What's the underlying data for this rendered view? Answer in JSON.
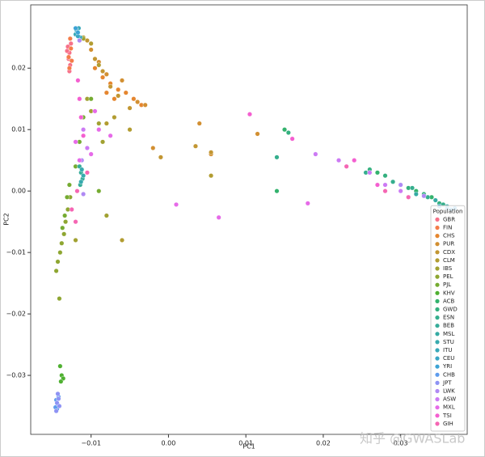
{
  "chart_data": {
    "type": "scatter",
    "x_label": "PC1",
    "y_label": "PC2",
    "xlim": [
      -0.0178,
      0.0386
    ],
    "ylim": [
      -0.0396,
      0.0303
    ],
    "xticks": [
      {
        "value": -0.01,
        "label": "−0.01"
      },
      {
        "value": 0,
        "label": "0.00"
      },
      0.01,
      0.02,
      0.03
    ],
    "yticks": [
      {
        "value": -0.03,
        "label": "−0.03"
      },
      {
        "value": -0.02,
        "label": "−0.02"
      },
      {
        "value": -0.01,
        "label": "−0.01"
      },
      {
        "value": 0,
        "label": "0.00"
      },
      0.01,
      0.02
    ],
    "grid": false,
    "legend_title": "Population",
    "legend_position": "lower right",
    "watermark": "知乎 @GWASLab",
    "series": [
      {
        "name": "GBR",
        "color": "#f77189",
        "x": [
          -0.013,
          -0.0128,
          -0.0129,
          -0.0127,
          -0.0131,
          -0.0126,
          -0.0128
        ],
        "y": [
          0.0235,
          0.0225,
          0.0215,
          0.0205,
          0.0228,
          0.024,
          0.0195
        ]
      },
      {
        "name": "FIN",
        "color": "#f47c49",
        "x": [
          -0.0127,
          -0.0129,
          -0.0126,
          -0.0128,
          -0.0125
        ],
        "y": [
          0.0248,
          0.0218,
          0.0232,
          0.02,
          0.0212
        ]
      },
      {
        "name": "CHS",
        "color": "#e5862f",
        "x": [
          -0.0095,
          -0.0085,
          -0.0075,
          -0.0065,
          -0.0055,
          -0.0045,
          -0.0035,
          -0.007,
          -0.008
        ],
        "y": [
          0.02,
          0.0185,
          0.0175,
          0.0165,
          0.016,
          0.015,
          0.014,
          0.015,
          0.016
        ]
      },
      {
        "name": "PUR",
        "color": "#d28f31",
        "x": [
          -0.01,
          -0.009,
          -0.008,
          -0.006,
          -0.004,
          -0.003,
          0.004,
          0.0115,
          0.0055,
          -0.002
        ],
        "y": [
          0.023,
          0.021,
          0.019,
          0.018,
          0.0145,
          0.014,
          0.011,
          0.0093,
          0.006,
          0.007
        ]
      },
      {
        "name": "CDX",
        "color": "#c29632",
        "x": [
          -0.0105,
          -0.0095,
          -0.0085,
          -0.0075,
          -0.0065,
          -0.005,
          0.0035,
          0.0055,
          -0.001
        ],
        "y": [
          0.0245,
          0.0215,
          0.0195,
          0.017,
          0.0155,
          0.0135,
          0.0073,
          0.0063,
          0.0055
        ]
      },
      {
        "name": "CLM",
        "color": "#b29c31",
        "x": [
          -0.011,
          -0.01,
          -0.009,
          -0.007,
          -0.005,
          -0.008,
          -0.006,
          0.0055
        ],
        "y": [
          0.025,
          0.024,
          0.0205,
          0.012,
          0.01,
          0.011,
          -0.008,
          0.0025
        ]
      },
      {
        "name": "IBS",
        "color": "#a1a131",
        "x": [
          -0.011,
          -0.0105,
          -0.01,
          -0.009,
          -0.0085,
          -0.008,
          -0.012
        ],
        "y": [
          0.0248,
          0.015,
          0.013,
          0.011,
          0.008,
          -0.004,
          -0.008
        ]
      },
      {
        "name": "PEL",
        "color": "#8ea631",
        "x": [
          -0.0145,
          -0.0143,
          -0.014,
          -0.0138,
          -0.0135,
          -0.0133,
          -0.013,
          -0.0127,
          -0.0141
        ],
        "y": [
          -0.013,
          -0.0115,
          -0.01,
          -0.0085,
          -0.007,
          -0.005,
          -0.003,
          -0.001,
          -0.0175
        ]
      },
      {
        "name": "PJL",
        "color": "#75ab31",
        "x": [
          -0.0137,
          -0.0134,
          -0.0131,
          -0.0128,
          -0.012,
          -0.0115,
          -0.011,
          -0.009,
          -0.01
        ],
        "y": [
          -0.006,
          -0.004,
          -0.001,
          0.001,
          0.004,
          0.008,
          0.012,
          0,
          0.015
        ]
      },
      {
        "name": "KHV",
        "color": "#4fb031",
        "x": [
          -0.014,
          -0.0138,
          -0.0136,
          -0.0139
        ],
        "y": [
          -0.0285,
          -0.03,
          -0.0305,
          -0.031
        ]
      },
      {
        "name": "ACB",
        "color": "#33b26d",
        "x": [
          0.014,
          0.015,
          0.027,
          0.03,
          0.032,
          0.034
        ],
        "y": [
          0,
          0.01,
          0.003,
          0.001,
          0,
          -0.001
        ]
      },
      {
        "name": "GWD",
        "color": "#34b07f",
        "x": [
          0.0155,
          0.026,
          0.028,
          0.031,
          0.033,
          0.035
        ],
        "y": [
          0.0095,
          0.0035,
          0.0025,
          0.0005,
          -0.0005,
          -0.002
        ]
      },
      {
        "name": "ESN",
        "color": "#35ae8d",
        "x": [
          0.014,
          0.0255,
          0.029,
          0.0315,
          0.0335,
          0.0355
        ],
        "y": [
          0.0055,
          0.003,
          0.0015,
          0.0005,
          -0.001,
          -0.0022
        ]
      },
      {
        "name": "BEB",
        "color": "#36ac99",
        "x": [
          -0.0115,
          -0.0113,
          -0.0111,
          -0.0114
        ],
        "y": [
          0.004,
          0.003,
          0.002,
          0.001
        ]
      },
      {
        "name": "MSL",
        "color": "#36aba4",
        "x": [
          0.03,
          0.032,
          0.0345,
          0.036
        ],
        "y": [
          0.001,
          -0.0005,
          -0.0015,
          -0.0025
        ]
      },
      {
        "name": "STU",
        "color": "#37aaae",
        "x": [
          -0.0112,
          -0.011,
          -0.0113
        ],
        "y": [
          0.0035,
          0.0025,
          0.0015
        ]
      },
      {
        "name": "ITU",
        "color": "#38a8b9",
        "x": [
          -0.0118,
          -0.0116,
          -0.012,
          -0.0114
        ],
        "y": [
          0.026,
          0.0265,
          0.0255,
          0.025
        ]
      },
      {
        "name": "CEU",
        "color": "#3aa6c5",
        "x": [
          -0.0119,
          -0.0117,
          -0.0115
        ],
        "y": [
          0.0262,
          0.0252,
          0.0245
        ]
      },
      {
        "name": "YRI",
        "color": "#3ca3d5",
        "x": [
          0.035,
          0.036,
          0.0365,
          0.037,
          -0.012,
          -0.0117
        ],
        "y": [
          -0.0025,
          -0.0028,
          -0.003,
          -0.0028,
          0.0265,
          0.0258
        ]
      },
      {
        "name": "CHB",
        "color": "#5e9ced",
        "x": [
          -0.0145,
          -0.0143,
          -0.0144,
          -0.0142,
          -0.0146
        ],
        "y": [
          -0.034,
          -0.0348,
          -0.0355,
          -0.0335,
          -0.0352
        ]
      },
      {
        "name": "JPT",
        "color": "#8e93f4",
        "x": [
          -0.0144,
          -0.0142,
          -0.0145,
          -0.0141,
          -0.0143
        ],
        "y": [
          -0.0345,
          -0.0338,
          -0.0358,
          -0.035,
          -0.033
        ]
      },
      {
        "name": "LWK",
        "color": "#af89f4",
        "x": [
          -0.0115,
          -0.0112,
          -0.011,
          0.03,
          0.033
        ],
        "y": [
          0.0245,
          0.005,
          -0.0005,
          0.001,
          -0.0008
        ]
      },
      {
        "name": "ASW",
        "color": "#cc7af4",
        "x": [
          0.019,
          0.022,
          0.026,
          0.028,
          0.03,
          -0.011,
          -0.0105
        ],
        "y": [
          0.006,
          0.005,
          0.003,
          0.001,
          0,
          0.01,
          0.007
        ]
      },
      {
        "name": "MXL",
        "color": "#e66ae8",
        "x": [
          -0.012,
          -0.0115,
          -0.01,
          -0.009,
          -0.0095,
          -0.0075,
          0.001,
          0.0065,
          0.018
        ],
        "y": [
          0.008,
          0.005,
          0.006,
          0.01,
          0.013,
          0.009,
          -0.0022,
          -0.0043,
          -0.002
        ]
      },
      {
        "name": "TSI",
        "color": "#f45fd0",
        "x": [
          -0.0117,
          -0.0115,
          -0.0113,
          -0.011,
          0.0105,
          0.016,
          0.024,
          0.027
        ],
        "y": [
          0.018,
          0.015,
          0.012,
          0.009,
          0.0125,
          0.0085,
          0.005,
          0.001
        ]
      },
      {
        "name": "GIH",
        "color": "#f566b3",
        "x": [
          -0.0125,
          -0.012,
          -0.0118,
          -0.0105,
          0.023,
          0.028,
          0.031
        ],
        "y": [
          -0.003,
          -0.005,
          0,
          0.003,
          0.004,
          0,
          -0.001
        ]
      }
    ]
  }
}
